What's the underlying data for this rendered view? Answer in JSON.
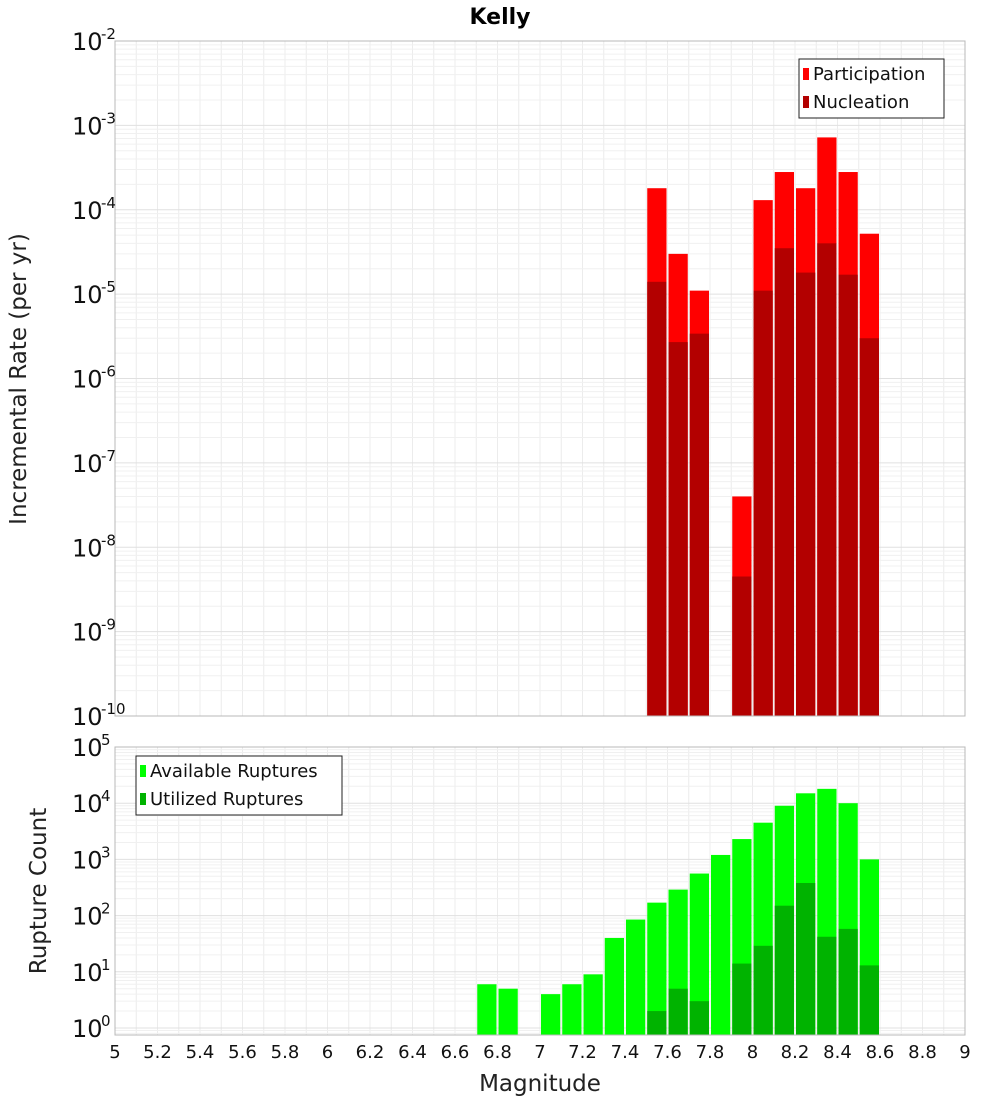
{
  "chart_data": [
    {
      "type": "bar",
      "title": "Kelly",
      "xlabel": "",
      "ylabel": "Incremental Rate (per yr)",
      "yscale": "log",
      "ylim": [
        1e-10,
        0.01
      ],
      "xlim": [
        5,
        9
      ],
      "legend_position": "top-right",
      "grid": true,
      "bin_width": 0.1,
      "series": [
        {
          "name": "Participation",
          "color": "#ff0000",
          "x": [
            7.55,
            7.65,
            7.75,
            7.95,
            8.05,
            8.15,
            8.25,
            8.35,
            8.45,
            8.55
          ],
          "values": [
            0.00018,
            3e-05,
            1.1e-05,
            4e-08,
            0.00013,
            0.00028,
            0.00018,
            0.00072,
            0.00028,
            5.2e-05
          ]
        },
        {
          "name": "Nucleation",
          "color": "#b30000",
          "x": [
            7.55,
            7.65,
            7.75,
            7.95,
            8.05,
            8.15,
            8.25,
            8.35,
            8.45,
            8.55
          ],
          "values": [
            1.4e-05,
            2.7e-06,
            3.4e-06,
            4.5e-09,
            1.1e-05,
            3.5e-05,
            1.8e-05,
            4e-05,
            1.7e-05,
            3e-06
          ]
        }
      ]
    },
    {
      "type": "bar",
      "title": "",
      "xlabel": "Magnitude",
      "ylabel": "Rupture Count",
      "yscale": "log",
      "ylim": [
        0.75,
        100000
      ],
      "xlim": [
        5,
        9
      ],
      "legend_position": "top-left",
      "grid": true,
      "bin_width": 0.1,
      "xticks": [
        "5",
        "5.2",
        "5.4",
        "5.6",
        "5.8",
        "6",
        "6.2",
        "6.4",
        "6.6",
        "6.8",
        "7",
        "7.2",
        "7.4",
        "7.6",
        "7.8",
        "8",
        "8.2",
        "8.4",
        "8.6",
        "8.8",
        "9"
      ],
      "series": [
        {
          "name": "Available Ruptures",
          "color": "#00ff00",
          "x": [
            6.75,
            6.85,
            7.05,
            7.15,
            7.25,
            7.35,
            7.45,
            7.55,
            7.65,
            7.75,
            7.85,
            7.95,
            8.05,
            8.15,
            8.25,
            8.35,
            8.45,
            8.55
          ],
          "values": [
            6,
            5,
            4,
            6,
            9,
            40,
            85,
            170,
            290,
            560,
            1200,
            2300,
            4500,
            9000,
            15000,
            18000,
            10000,
            1000
          ]
        },
        {
          "name": "Utilized Ruptures",
          "color": "#00b300",
          "x": [
            7.55,
            7.65,
            7.75,
            7.95,
            8.05,
            8.15,
            8.25,
            8.35,
            8.45,
            8.55
          ],
          "values": [
            2,
            5,
            3,
            14,
            29,
            150,
            380,
            42,
            58,
            13
          ]
        }
      ]
    }
  ]
}
